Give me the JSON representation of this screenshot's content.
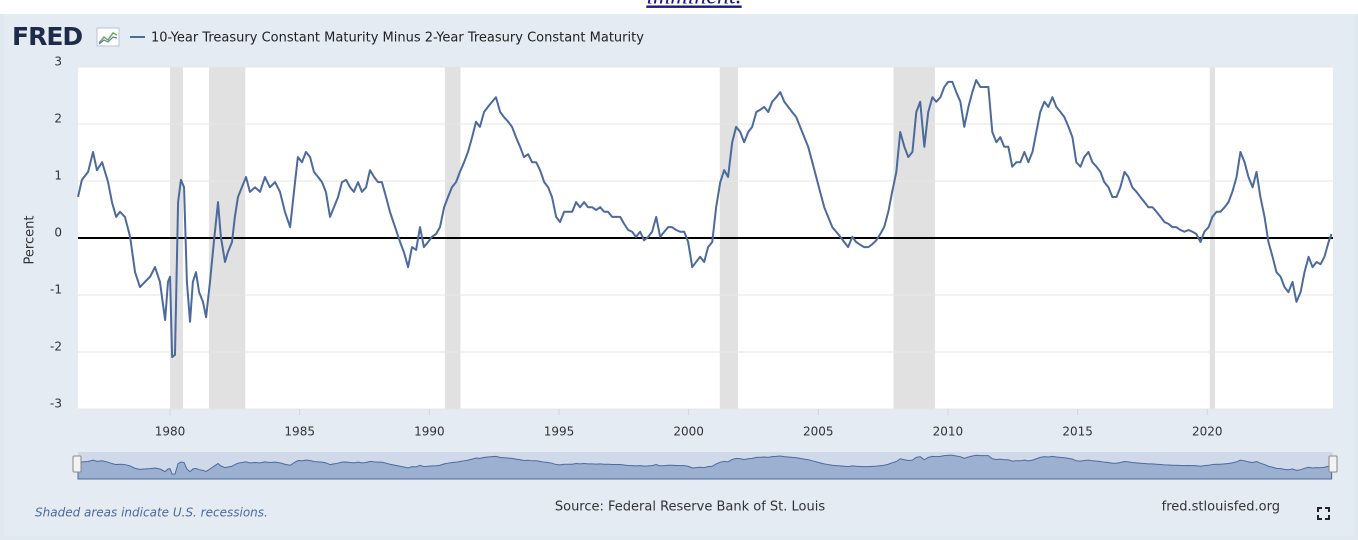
{
  "header": {
    "text": "imminent."
  },
  "chart_data": {
    "type": "line",
    "logo": "FRED",
    "ylabel": "Percent",
    "note": "Shaded areas indicate U.S. recessions.",
    "source": "Source: Federal Reserve Bank of St. Louis",
    "site": "fred.stlouisfed.org",
    "xlim": [
      1976.45,
      2024.85
    ],
    "xticks": [
      1980,
      1985,
      1990,
      1995,
      2000,
      2005,
      2010,
      2015,
      2020
    ],
    "ylim": [
      -3,
      3
    ],
    "yticks": [
      3,
      2,
      1,
      0,
      -1,
      -2,
      -3
    ],
    "grid": true,
    "reference_line": 0,
    "recessions": [
      [
        1980.0,
        1980.5
      ],
      [
        1981.5,
        1982.9
      ],
      [
        1990.6,
        1991.2
      ],
      [
        2001.2,
        2001.9
      ],
      [
        2007.9,
        2009.5
      ],
      [
        2020.1,
        2020.3
      ]
    ],
    "x": [
      1976.45,
      1976.6,
      1976.84,
      1977.03,
      1977.18,
      1977.38,
      1977.61,
      1977.76,
      1977.92,
      1978.07,
      1978.26,
      1978.46,
      1978.65,
      1978.84,
      1979.03,
      1979.23,
      1979.42,
      1979.61,
      1979.81,
      1979.92,
      1980.0,
      1980.08,
      1980.19,
      1980.31,
      1980.42,
      1980.54,
      1980.65,
      1980.77,
      1980.88,
      1981.0,
      1981.12,
      1981.27,
      1981.39,
      1981.54,
      1981.69,
      1981.85,
      1981.96,
      1982.12,
      1982.23,
      1982.39,
      1982.5,
      1982.62,
      1982.77,
      1982.93,
      1983.08,
      1983.28,
      1983.47,
      1983.66,
      1983.85,
      1984.05,
      1984.24,
      1984.43,
      1984.63,
      1984.82,
      1984.93,
      1985.09,
      1985.24,
      1985.4,
      1985.55,
      1985.71,
      1985.86,
      1986.01,
      1986.17,
      1986.32,
      1986.48,
      1986.63,
      1986.79,
      1986.94,
      1987.09,
      1987.25,
      1987.4,
      1987.56,
      1987.71,
      1987.87,
      1988.02,
      1988.17,
      1988.33,
      1988.48,
      1988.68,
      1988.87,
      1989.02,
      1989.18,
      1989.33,
      1989.49,
      1989.64,
      1989.79,
      1989.95,
      1990.1,
      1990.26,
      1990.41,
      1990.57,
      1990.72,
      1990.87,
      1991.03,
      1991.18,
      1991.34,
      1991.49,
      1991.65,
      1991.8,
      1991.95,
      1992.11,
      1992.26,
      1992.42,
      1992.57,
      1992.73,
      1992.88,
      1993.04,
      1993.19,
      1993.34,
      1993.5,
      1993.65,
      1993.81,
      1993.96,
      1994.12,
      1994.27,
      1994.43,
      1994.58,
      1994.73,
      1994.89,
      1995.04,
      1995.2,
      1995.35,
      1995.51,
      1995.66,
      1995.81,
      1995.97,
      1996.12,
      1996.28,
      1996.43,
      1996.59,
      1996.74,
      1996.89,
      1997.05,
      1997.2,
      1997.36,
      1997.51,
      1997.67,
      1997.82,
      1997.97,
      1998.13,
      1998.28,
      1998.44,
      1998.59,
      1998.75,
      1998.9,
      1999.06,
      1999.21,
      1999.36,
      1999.52,
      1999.67,
      1999.83,
      1999.98,
      2000.14,
      2000.29,
      2000.44,
      2000.6,
      2000.75,
      2000.91,
      2001.06,
      2001.22,
      2001.37,
      2001.52,
      2001.68,
      2001.83,
      2001.99,
      2002.14,
      2002.3,
      2002.45,
      2002.61,
      2002.76,
      2002.91,
      2003.07,
      2003.22,
      2003.38,
      2003.53,
      2003.69,
      2003.84,
      2003.99,
      2004.15,
      2004.3,
      2004.46,
      2004.61,
      2004.77,
      2004.92,
      2005.07,
      2005.23,
      2005.38,
      2005.54,
      2005.69,
      2005.85,
      2006.0,
      2006.15,
      2006.31,
      2006.46,
      2006.62,
      2006.77,
      2006.93,
      2007.08,
      2007.24,
      2007.39,
      2007.54,
      2007.7,
      2007.85,
      2008.01,
      2008.16,
      2008.32,
      2008.47,
      2008.63,
      2008.78,
      2008.93,
      2009.09,
      2009.24,
      2009.4,
      2009.55,
      2009.71,
      2009.86,
      2010.01,
      2010.17,
      2010.32,
      2010.48,
      2010.63,
      2010.79,
      2010.94,
      2011.09,
      2011.25,
      2011.4,
      2011.56,
      2011.71,
      2011.87,
      2012.02,
      2012.17,
      2012.33,
      2012.48,
      2012.64,
      2012.79,
      2012.95,
      2013.1,
      2013.26,
      2013.41,
      2013.56,
      2013.72,
      2013.87,
      2014.03,
      2014.18,
      2014.34,
      2014.49,
      2014.65,
      2014.8,
      2014.95,
      2015.11,
      2015.26,
      2015.42,
      2015.57,
      2015.73,
      2015.88,
      2016.03,
      2016.19,
      2016.34,
      2016.5,
      2016.65,
      2016.81,
      2016.96,
      2017.11,
      2017.27,
      2017.42,
      2017.58,
      2017.73,
      2017.89,
      2018.04,
      2018.2,
      2018.35,
      2018.5,
      2018.66,
      2018.81,
      2018.97,
      2019.12,
      2019.28,
      2019.43,
      2019.58,
      2019.74,
      2019.89,
      2020.05,
      2020.2,
      2020.36,
      2020.51,
      2020.67,
      2020.82,
      2020.97,
      2021.13,
      2021.28,
      2021.44,
      2021.59,
      2021.75,
      2021.9,
      2022.05,
      2022.21,
      2022.36,
      2022.52,
      2022.67,
      2022.83,
      2022.98,
      2023.13,
      2023.29,
      2023.44,
      2023.6,
      2023.75,
      2023.91,
      2024.06,
      2024.22,
      2024.37,
      2024.52,
      2024.68,
      2024.79
    ],
    "series": [
      {
        "name": "10-Year Treasury Constant Maturity Minus 2-Year Treasury Constant Maturity",
        "color": "#4c6a9c",
        "values": [
          0.72,
          1.02,
          1.16,
          1.51,
          1.19,
          1.33,
          0.98,
          0.63,
          0.37,
          0.46,
          0.37,
          0.02,
          -0.6,
          -0.86,
          -0.77,
          -0.68,
          -0.51,
          -0.77,
          -1.44,
          -0.77,
          -0.68,
          -2.09,
          -2.05,
          0.63,
          1.02,
          0.89,
          -0.77,
          -1.47,
          -0.77,
          -0.6,
          -0.95,
          -1.12,
          -1.39,
          -0.77,
          -0.07,
          0.63,
          0.02,
          -0.42,
          -0.25,
          -0.07,
          0.37,
          0.72,
          0.89,
          1.07,
          0.81,
          0.89,
          0.81,
          1.07,
          0.89,
          0.98,
          0.81,
          0.46,
          0.19,
          0.98,
          1.42,
          1.33,
          1.51,
          1.42,
          1.16,
          1.07,
          0.98,
          0.81,
          0.37,
          0.54,
          0.72,
          0.98,
          1.02,
          0.89,
          0.81,
          0.98,
          0.81,
          0.89,
          1.19,
          1.07,
          0.98,
          0.98,
          0.72,
          0.46,
          0.19,
          -0.07,
          -0.25,
          -0.51,
          -0.16,
          -0.21,
          0.19,
          -0.16,
          -0.07,
          0.02,
          0.07,
          0.19,
          0.54,
          0.72,
          0.89,
          0.98,
          1.16,
          1.33,
          1.51,
          1.77,
          2.04,
          1.95,
          2.21,
          2.3,
          2.39,
          2.47,
          2.21,
          2.12,
          2.04,
          1.95,
          1.77,
          1.6,
          1.42,
          1.47,
          1.33,
          1.33,
          1.19,
          0.98,
          0.89,
          0.72,
          0.37,
          0.28,
          0.46,
          0.46,
          0.46,
          0.63,
          0.54,
          0.63,
          0.54,
          0.54,
          0.49,
          0.54,
          0.46,
          0.46,
          0.37,
          0.37,
          0.37,
          0.25,
          0.14,
          0.11,
          0.02,
          0.11,
          -0.04,
          0.02,
          0.11,
          0.37,
          0.02,
          0.11,
          0.19,
          0.19,
          0.14,
          0.11,
          0.11,
          -0.07,
          -0.51,
          -0.42,
          -0.33,
          -0.42,
          -0.16,
          -0.07,
          0.54,
          0.98,
          1.19,
          1.07,
          1.68,
          1.95,
          1.86,
          1.68,
          1.86,
          1.95,
          2.21,
          2.25,
          2.3,
          2.21,
          2.39,
          2.47,
          2.56,
          2.39,
          2.3,
          2.21,
          2.12,
          1.95,
          1.77,
          1.6,
          1.33,
          1.07,
          0.81,
          0.54,
          0.37,
          0.19,
          0.11,
          0.02,
          -0.07,
          -0.16,
          0.02,
          -0.07,
          -0.12,
          -0.16,
          -0.16,
          -0.11,
          -0.04,
          0.07,
          0.19,
          0.46,
          0.81,
          1.16,
          1.86,
          1.6,
          1.42,
          1.51,
          2.21,
          2.39,
          1.6,
          2.21,
          2.47,
          2.39,
          2.47,
          2.65,
          2.74,
          2.74,
          2.56,
          2.39,
          1.95,
          2.3,
          2.56,
          2.77,
          2.65,
          2.65,
          2.65,
          1.86,
          1.68,
          1.77,
          1.6,
          1.6,
          1.25,
          1.33,
          1.33,
          1.51,
          1.33,
          1.51,
          1.86,
          2.21,
          2.39,
          2.3,
          2.47,
          2.3,
          2.21,
          2.12,
          1.95,
          1.77,
          1.33,
          1.25,
          1.42,
          1.51,
          1.33,
          1.25,
          1.16,
          0.98,
          0.89,
          0.72,
          0.72,
          0.89,
          1.16,
          1.07,
          0.89,
          0.81,
          0.72,
          0.63,
          0.54,
          0.54,
          0.46,
          0.37,
          0.28,
          0.25,
          0.19,
          0.19,
          0.14,
          0.11,
          0.14,
          0.11,
          0.07,
          -0.07,
          0.11,
          0.19,
          0.37,
          0.46,
          0.46,
          0.54,
          0.63,
          0.81,
          1.07,
          1.51,
          1.33,
          1.07,
          0.89,
          1.16,
          0.72,
          0.37,
          -0.07,
          -0.33,
          -0.6,
          -0.68,
          -0.86,
          -0.95,
          -0.77,
          -1.12,
          -0.95,
          -0.6,
          -0.33,
          -0.51,
          -0.42,
          -0.46,
          -0.33,
          -0.07,
          0.07
        ]
      }
    ]
  }
}
